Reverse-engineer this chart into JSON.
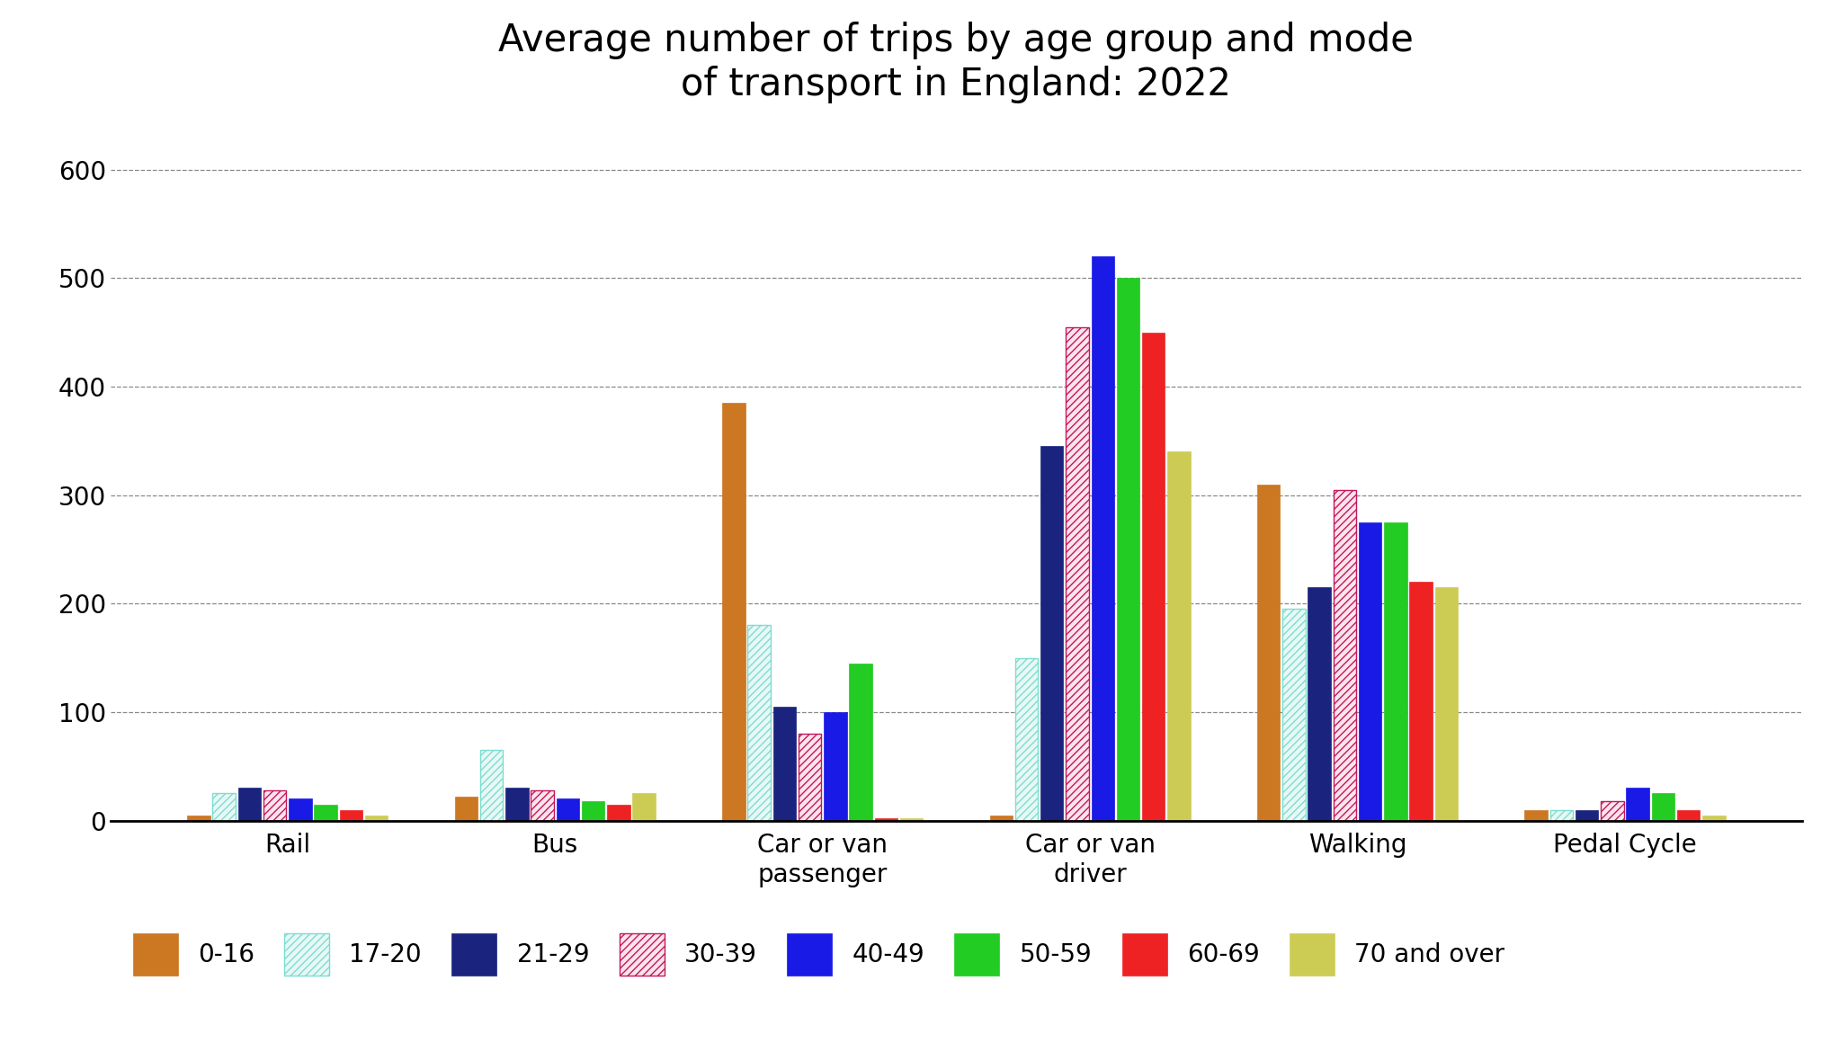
{
  "title": "Average number of trips by age group and mode\nof transport in England: 2022",
  "categories": [
    "Rail",
    "Bus",
    "Car or van\npassenger",
    "Car or van\ndriver",
    "Walking",
    "Pedal Cycle"
  ],
  "age_groups": [
    "0-16",
    "17-20",
    "21-29",
    "30-39",
    "40-49",
    "50-59",
    "60-69",
    "70 and over"
  ],
  "colors": [
    "#CC7722",
    "#7DDDD0",
    "#1A237E",
    "#C2185B",
    "#1A1AE6",
    "#22CC22",
    "#EE2222",
    "#CCCC55"
  ],
  "hatch_colors": [
    null,
    "#7DDDD0",
    null,
    "#C2185B",
    null,
    null,
    null,
    null
  ],
  "face_colors": [
    "#CC7722",
    "#E8F8F5",
    "#1A237E",
    "#FCE4EC",
    "#1A1AE6",
    "#22CC22",
    "#EE2222",
    "#CCCC55"
  ],
  "hatches": [
    null,
    "////",
    null,
    "////",
    null,
    null,
    null,
    null
  ],
  "data": {
    "Rail": [
      5,
      25,
      30,
      28,
      20,
      15,
      10,
      5
    ],
    "Bus": [
      22,
      65,
      30,
      28,
      20,
      18,
      15,
      25
    ],
    "Car or van\npassenger": [
      385,
      180,
      105,
      80,
      100,
      145,
      2,
      2
    ],
    "Car or van\ndriver": [
      5,
      150,
      345,
      455,
      520,
      500,
      450,
      340
    ],
    "Walking": [
      310,
      195,
      215,
      305,
      275,
      275,
      220,
      215
    ],
    "Pedal Cycle": [
      10,
      10,
      10,
      18,
      30,
      25,
      10,
      5
    ]
  },
  "ylim": [
    0,
    640
  ],
  "yticks": [
    0,
    100,
    200,
    300,
    400,
    500,
    600
  ],
  "background_color": "#FFFFFF",
  "title_fontsize": 30,
  "tick_fontsize": 20,
  "legend_fontsize": 20,
  "xlabel_fontsize": 20
}
